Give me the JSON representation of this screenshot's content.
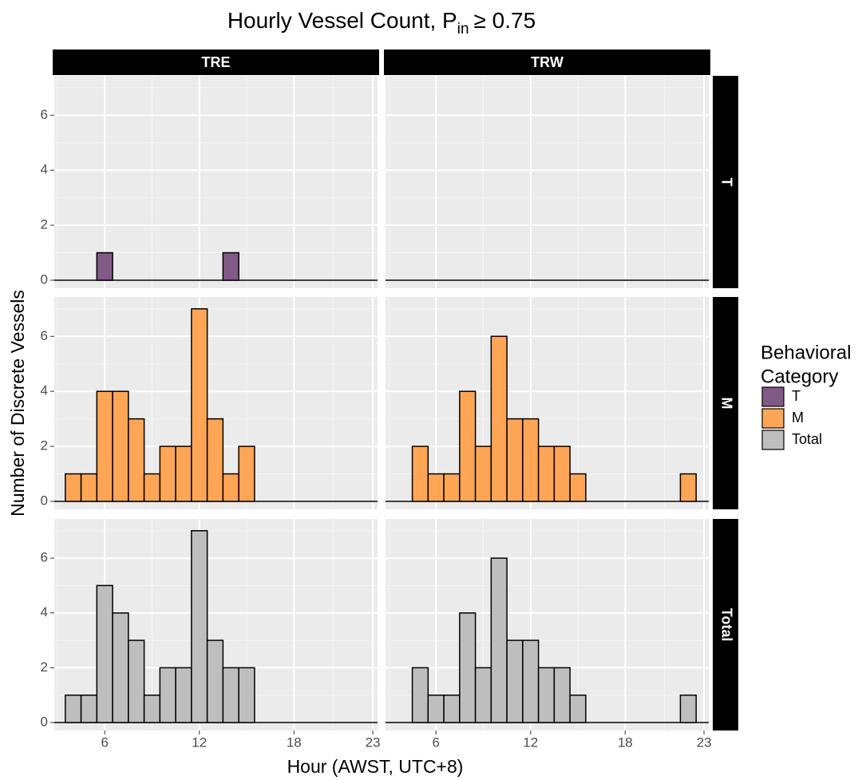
{
  "chart_data": {
    "type": "histogram",
    "title": {
      "main": "Hourly Vessel Count, P",
      "sub": "in",
      "rest": "≥ 0.75"
    },
    "x_label": "Hour (AWST, UTC+8)",
    "y_label": "Number of Discrete Vessels",
    "xlim": [
      2.8,
      23.3
    ],
    "xticks": [
      6,
      12,
      18,
      23
    ],
    "ylim": [
      -0.29,
      7.43
    ],
    "yticks": [
      0,
      2,
      4,
      6
    ],
    "grid": true,
    "legend_title": [
      "Behavioral",
      "Category"
    ],
    "legend_position": "right",
    "columns": [
      "TRE",
      "TRW"
    ],
    "rows": [
      {
        "name": "T",
        "color": "#825a87"
      },
      {
        "name": "M",
        "color": "#ffa556"
      },
      {
        "name": "Total",
        "color": "#bebebe"
      }
    ],
    "panels": [
      [
        {
          "x": [
            6,
            14
          ],
          "values": [
            1,
            1
          ]
        },
        {
          "x": [],
          "values": []
        }
      ],
      [
        {
          "x": [
            4,
            5,
            6,
            7,
            8,
            9,
            10,
            11,
            12,
            13,
            14,
            15
          ],
          "values": [
            1,
            1,
            4,
            4,
            3,
            1,
            2,
            2,
            7,
            3,
            1,
            2
          ]
        },
        {
          "x": [
            5,
            6,
            7,
            8,
            9,
            10,
            11,
            12,
            13,
            14,
            15,
            22
          ],
          "values": [
            2,
            1,
            1,
            4,
            2,
            6,
            3,
            3,
            2,
            2,
            1,
            1
          ]
        }
      ],
      [
        {
          "x": [
            4,
            5,
            6,
            7,
            8,
            9,
            10,
            11,
            12,
            13,
            14,
            15
          ],
          "values": [
            1,
            1,
            5,
            4,
            3,
            1,
            2,
            2,
            7,
            3,
            2,
            2
          ]
        },
        {
          "x": [
            5,
            6,
            7,
            8,
            9,
            10,
            11,
            12,
            13,
            14,
            15,
            22
          ],
          "values": [
            2,
            1,
            1,
            4,
            2,
            6,
            3,
            3,
            2,
            2,
            1,
            1
          ]
        }
      ]
    ]
  }
}
